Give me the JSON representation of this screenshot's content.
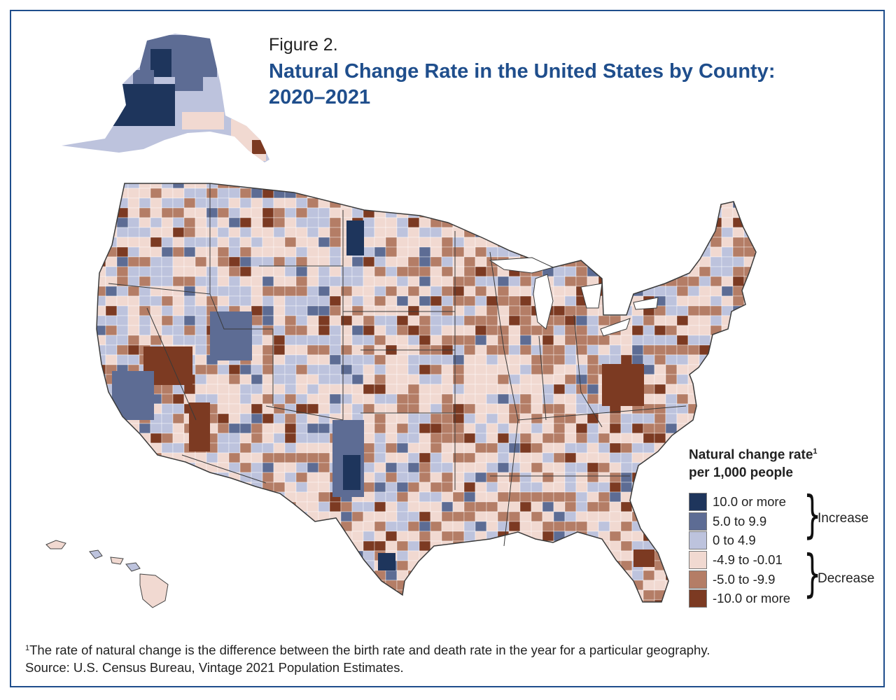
{
  "figure_label": "Figure 2.",
  "title": "Natural Change Rate in the United States by County: 2020–2021",
  "legend": {
    "title_line1": "Natural change rate",
    "title_sup": "1",
    "title_line2": "per 1,000 people",
    "items": [
      {
        "label": "10.0 or more",
        "color": "#1e355c"
      },
      {
        "label": "5.0 to 9.9",
        "color": "#5d6c94"
      },
      {
        "label": "0 to 4.9",
        "color": "#bdc3dd"
      },
      {
        "label": "-4.9 to -0.01",
        "color": "#f1d9d1"
      },
      {
        "label": "-5.0 to -9.9",
        "color": "#b47d66"
      },
      {
        "label": "-10.0 or more",
        "color": "#7c3a22"
      }
    ],
    "groups": {
      "increase": "Increase",
      "decrease": "Decrease"
    }
  },
  "footnote": {
    "marker": "1",
    "text": "The rate of natural change is the difference between the birth rate and death rate in the year for a particular geography.",
    "source": "Source: U.S. Census Bureau, Vintage 2021 Population Estimates."
  },
  "colors": {
    "frame": "#1f4e8c",
    "title": "#1f4e8c",
    "border": "#3a3a3a"
  }
}
